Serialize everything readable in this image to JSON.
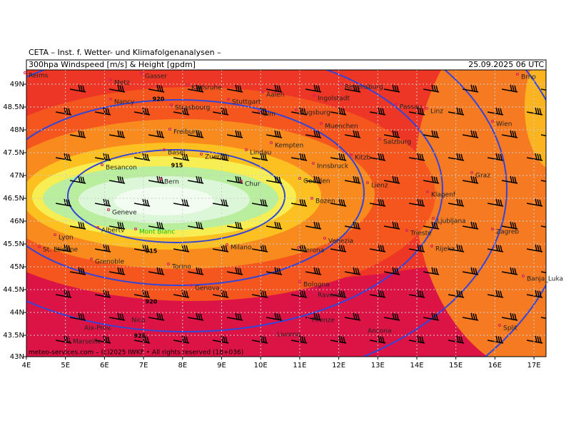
{
  "header": {
    "institute": "CETA – Inst. f. Wetter- und Klimafolgenanalysen –",
    "title": "300hpa Windspeed [m/s] & Height [gpdm]",
    "valid": "25.09.2025 06 UTC"
  },
  "map": {
    "lat_labels": [
      "49N",
      "48.5N",
      "48N",
      "47.5N",
      "47N",
      "46.5N",
      "46N",
      "45.5N",
      "45N",
      "44.5N",
      "44N",
      "43.5N",
      "43N"
    ],
    "lon_labels": [
      "4E",
      "5E",
      "6E",
      "7E",
      "8E",
      "9E",
      "10E",
      "11E",
      "12E",
      "13E",
      "14E",
      "15E",
      "16E",
      "17E"
    ],
    "cities": [
      "Reims",
      "Metz",
      "Gasser",
      "Karlsruhe",
      "Nancy",
      "Strasbourg",
      "Stuttgart",
      "Aalen",
      "Ingolstadt",
      "Regensburg",
      "Passau",
      "Ulm",
      "Augsburg",
      "Linz",
      "Muenchen",
      "Wien",
      "Freiburg",
      "Kempten",
      "Salzburg",
      "Basel",
      "Zuerich",
      "Lindau",
      "Kitzb",
      "Besancon",
      "Innsbruck",
      "Graz",
      "Bern",
      "Chur",
      "Goelden",
      "Lienz",
      "Klagenf",
      "Bozen",
      "Geneve",
      "Albertv",
      "Mont Blanc",
      "Lyon",
      "Ljubljana",
      "Trieste",
      "Zagreb",
      "Venezia",
      "Milano",
      "Verona",
      "Rijeka",
      "St. Etienne",
      "Grenoble",
      "Torino",
      "Bologna",
      "Genova",
      "Banja_Luka",
      "Ravenna",
      "Nica",
      "Firenze",
      "Aix-Prov.",
      "Ancona",
      "Livorno",
      "Split",
      "Marseille",
      "Brno"
    ],
    "contour_labels": [
      "920",
      "915",
      "915",
      "920",
      "925"
    ]
  },
  "footer": "meteo-services.com – (c)2025 IWKF • All rights reserved (18+036)"
}
